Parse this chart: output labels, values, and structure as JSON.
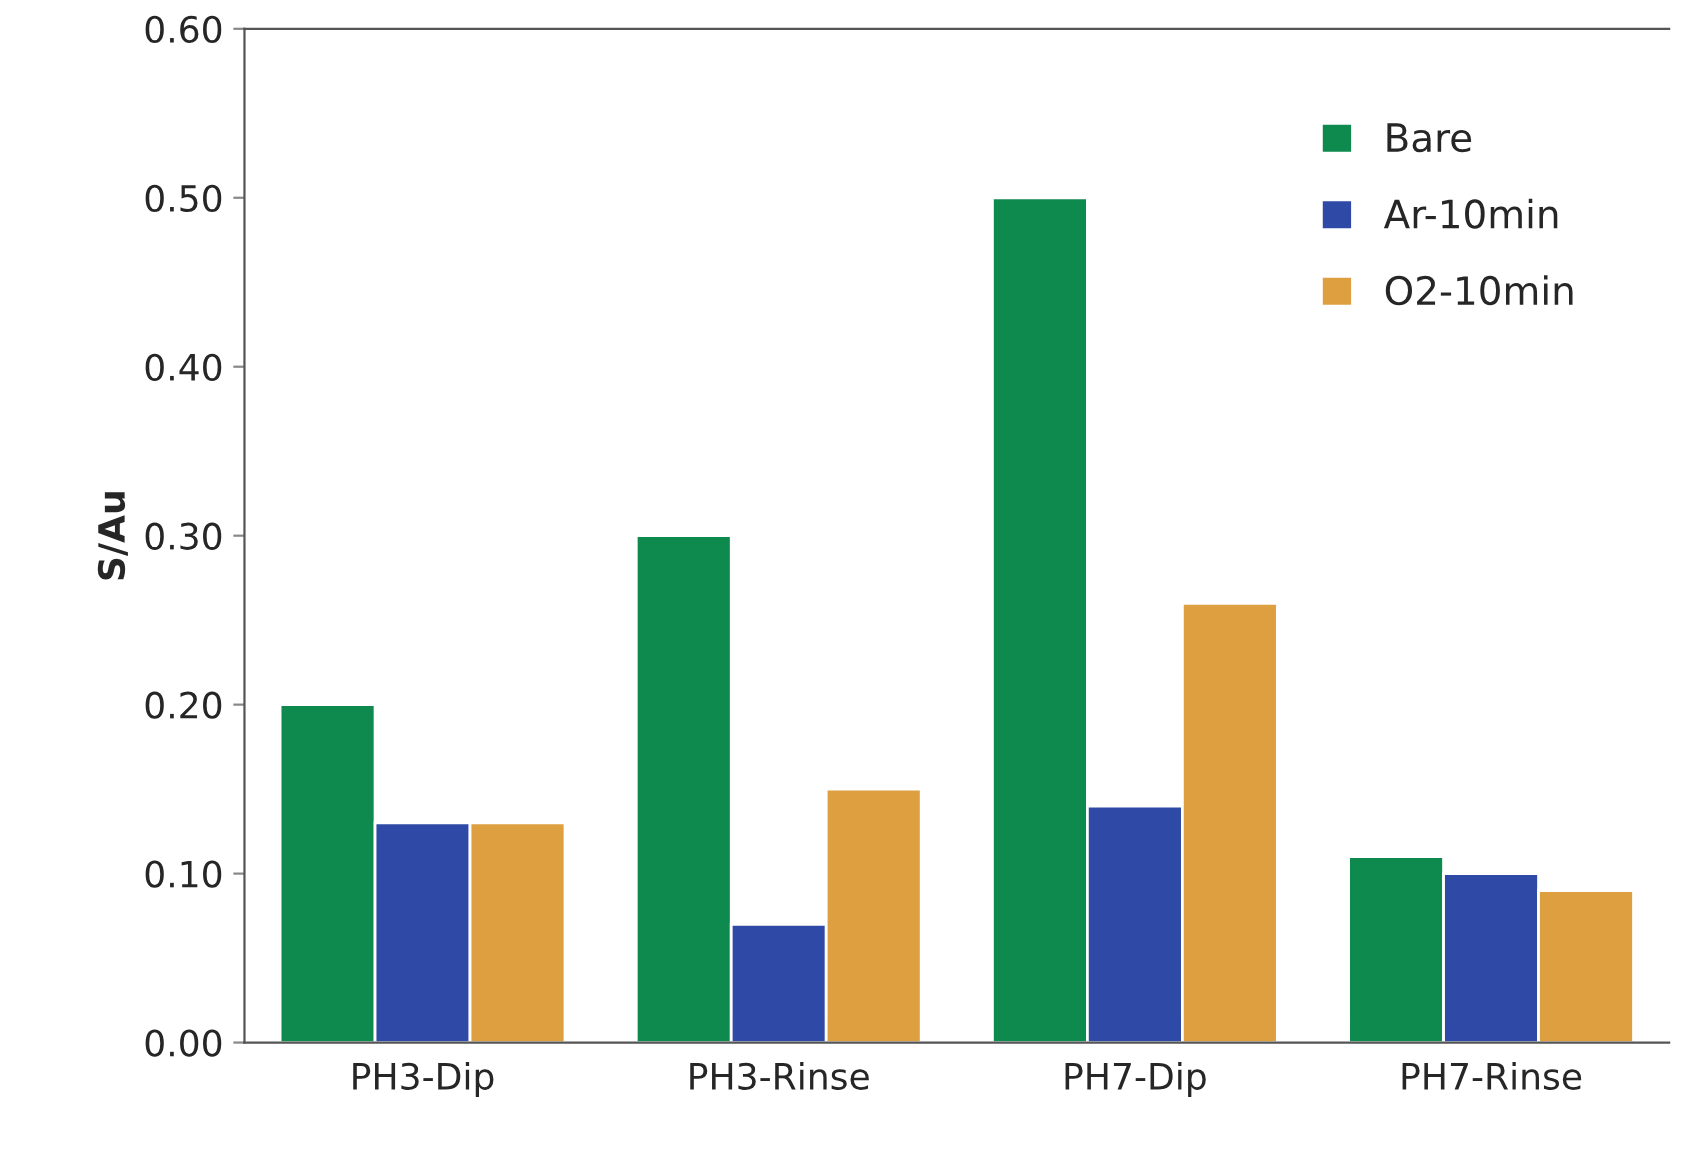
{
  "chart_data": {
    "type": "bar",
    "ylabel": "S/Au",
    "categories": [
      "PH3-Dip",
      "PH3-Rinse",
      "PH7-Dip",
      "PH7-Rinse"
    ],
    "series": [
      {
        "name": "Bare",
        "color": "#0f8a4f",
        "values": [
          0.2,
          0.3,
          0.5,
          0.11
        ]
      },
      {
        "name": "Ar-10min",
        "color": "#2e4aa6",
        "values": [
          0.13,
          0.07,
          0.14,
          0.1
        ]
      },
      {
        "name": "O2-10min",
        "color": "#dd9f40",
        "values": [
          0.13,
          0.15,
          0.26,
          0.09
        ]
      }
    ],
    "ylim": [
      0,
      0.6
    ],
    "yticks": [
      {
        "value": 0,
        "label": "0.00"
      },
      {
        "value": 0.1,
        "label": "0.10"
      },
      {
        "value": 0.2,
        "label": "0.20"
      },
      {
        "value": 0.3,
        "label": "0.30"
      },
      {
        "value": 0.4,
        "label": "0.40"
      },
      {
        "value": 0.5,
        "label": "0.50"
      },
      {
        "value": 0.6,
        "label": "0.60"
      }
    ],
    "grid": false,
    "legend": "top right"
  }
}
